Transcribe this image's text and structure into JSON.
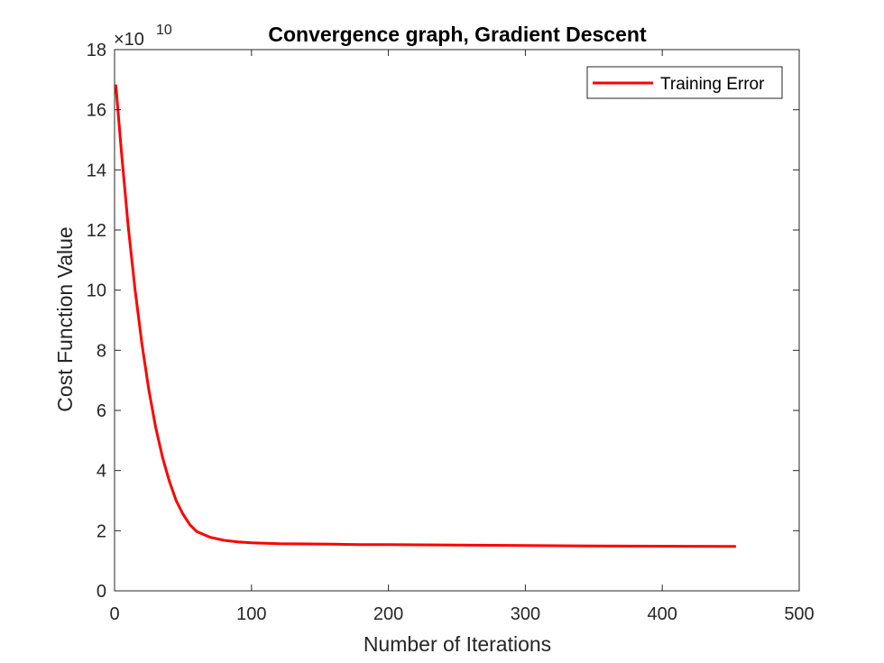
{
  "chart_data": {
    "type": "line",
    "title": "Convergence graph, Gradient Descent",
    "xlabel": "Number of Iterations",
    "ylabel": "Cost Function Value",
    "xlim": [
      0,
      500
    ],
    "ylim": [
      0,
      18
    ],
    "x_ticks": [
      "0",
      "100",
      "200",
      "300",
      "400",
      "500"
    ],
    "y_ticks": [
      "0",
      "2",
      "4",
      "6",
      "8",
      "10",
      "12",
      "14",
      "16",
      "18"
    ],
    "y_multiplier": {
      "base": "×10",
      "exponent": "10"
    },
    "grid": false,
    "legend": {
      "location": "top-right"
    },
    "series": [
      {
        "name": "Training Error",
        "color": "#ff0000",
        "x": [
          1,
          5,
          10,
          15,
          20,
          25,
          30,
          35,
          40,
          45,
          50,
          55,
          60,
          70,
          80,
          90,
          100,
          120,
          140,
          160,
          180,
          200,
          250,
          300,
          350,
          400,
          453
        ],
        "y": [
          16.8,
          14.6,
          12.1,
          10.0,
          8.2,
          6.7,
          5.45,
          4.45,
          3.65,
          3.0,
          2.55,
          2.2,
          1.97,
          1.78,
          1.68,
          1.63,
          1.6,
          1.57,
          1.56,
          1.55,
          1.54,
          1.535,
          1.52,
          1.505,
          1.495,
          1.485,
          1.475
        ]
      }
    ]
  }
}
